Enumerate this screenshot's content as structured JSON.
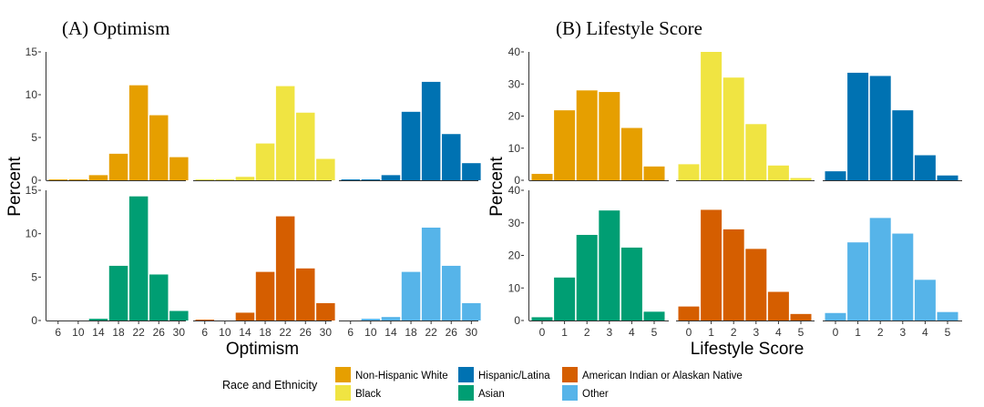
{
  "colors": {
    "Non-Hispanic White": "#E69F00",
    "Black": "#F0E442",
    "Hispanic/Latina": "#0072B2",
    "Asian": "#009E73",
    "American Indian or Alaskan Native": "#D55E00",
    "Other": "#56B4E9"
  },
  "legend": {
    "title": "Race and Ethnicity",
    "items": [
      "Non-Hispanic White",
      "Black",
      "Hispanic/Latina",
      "Asian",
      "American Indian or Alaskan Native",
      "Other"
    ]
  },
  "chart_data": [
    {
      "type": "bar",
      "title": "(A) Optimism",
      "xlabel": "Optimism",
      "ylabel": "Percent",
      "ylim": [
        0,
        15
      ],
      "yticks": [
        0,
        5,
        10,
        15
      ],
      "categories": [
        "6",
        "10",
        "14",
        "18",
        "22",
        "26",
        "30"
      ],
      "facets": [
        {
          "name": "Non-Hispanic White",
          "values": [
            0.1,
            0.1,
            0.6,
            3.1,
            11.1,
            7.6,
            2.7
          ]
        },
        {
          "name": "Black",
          "values": [
            0.1,
            0.1,
            0.4,
            4.3,
            11.0,
            7.9,
            2.5
          ]
        },
        {
          "name": "Hispanic/Latina",
          "values": [
            0.1,
            0.1,
            0.6,
            8.0,
            11.5,
            5.4,
            2.0
          ]
        },
        {
          "name": "Asian",
          "values": [
            0.0,
            0.0,
            0.2,
            6.3,
            14.3,
            5.3,
            1.1
          ]
        },
        {
          "name": "American Indian or Alaskan Native",
          "values": [
            0.1,
            0.0,
            0.9,
            5.6,
            12.0,
            6.0,
            2.0
          ]
        },
        {
          "name": "Other",
          "values": [
            0.0,
            0.2,
            0.4,
            5.6,
            10.7,
            6.3,
            2.0
          ]
        }
      ]
    },
    {
      "type": "bar",
      "title": "(B) Lifestyle Score",
      "xlabel": "Lifestyle Score",
      "ylabel": "Percent",
      "ylim": [
        0,
        40
      ],
      "yticks": [
        0,
        10,
        20,
        30,
        40
      ],
      "categories": [
        "0",
        "1",
        "2",
        "3",
        "4",
        "5"
      ],
      "facets": [
        {
          "name": "Non-Hispanic White",
          "values": [
            2.0,
            21.8,
            28.0,
            27.5,
            16.3,
            4.3
          ]
        },
        {
          "name": "Black",
          "values": [
            5.0,
            40.0,
            32.0,
            17.5,
            4.6,
            0.7
          ]
        },
        {
          "name": "Hispanic/Latina",
          "values": [
            2.8,
            33.5,
            32.5,
            21.8,
            7.8,
            1.5
          ]
        },
        {
          "name": "Asian",
          "values": [
            1.0,
            13.2,
            26.3,
            33.8,
            22.4,
            2.7
          ]
        },
        {
          "name": "American Indian or Alaskan Native",
          "values": [
            4.3,
            34.0,
            28.0,
            22.0,
            8.8,
            2.0
          ]
        },
        {
          "name": "Other",
          "values": [
            2.3,
            24.0,
            31.5,
            26.7,
            12.5,
            2.6
          ]
        }
      ]
    }
  ]
}
